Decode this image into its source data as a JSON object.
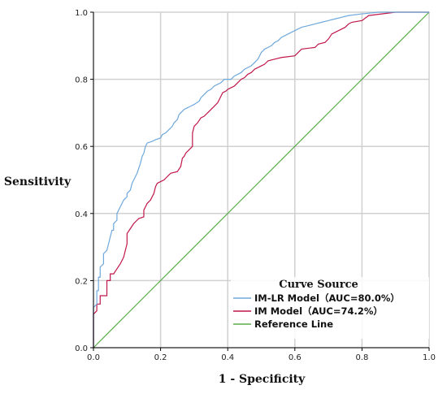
{
  "chart_data": {
    "type": "line",
    "title": "",
    "xlabel": "1 - Specificity",
    "ylabel": "Sensitivity",
    "xlim": [
      0,
      1
    ],
    "ylim": [
      0,
      1
    ],
    "x_ticks": [
      "0.0",
      "0.2",
      "0.4",
      "0.6",
      "0.8",
      "1.0"
    ],
    "y_ticks": [
      "0.0",
      "0.2",
      "0.4",
      "0.6",
      "0.8",
      "1.0"
    ],
    "grid": true,
    "legend": {
      "title": "Curve Source",
      "placement": "bottom-right"
    },
    "series": [
      {
        "name": "IM-LR Model（AUC=80.0%）",
        "color": "#6fa8dc",
        "points": [
          [
            0,
            0
          ],
          [
            0,
            0.12
          ],
          [
            0.01,
            0.13
          ],
          [
            0.01,
            0.17
          ],
          [
            0.015,
            0.17
          ],
          [
            0.015,
            0.21
          ],
          [
            0.02,
            0.21
          ],
          [
            0.02,
            0.24
          ],
          [
            0.03,
            0.25
          ],
          [
            0.03,
            0.28
          ],
          [
            0.04,
            0.29
          ],
          [
            0.045,
            0.31
          ],
          [
            0.05,
            0.33
          ],
          [
            0.055,
            0.35
          ],
          [
            0.06,
            0.35
          ],
          [
            0.06,
            0.37
          ],
          [
            0.07,
            0.38
          ],
          [
            0.07,
            0.4
          ],
          [
            0.08,
            0.42
          ],
          [
            0.09,
            0.44
          ],
          [
            0.1,
            0.45
          ],
          [
            0.1,
            0.46
          ],
          [
            0.11,
            0.47
          ],
          [
            0.115,
            0.49
          ],
          [
            0.125,
            0.51
          ],
          [
            0.13,
            0.52
          ],
          [
            0.14,
            0.55
          ],
          [
            0.145,
            0.57
          ],
          [
            0.15,
            0.58
          ],
          [
            0.155,
            0.6
          ],
          [
            0.16,
            0.61
          ],
          [
            0.175,
            0.615
          ],
          [
            0.185,
            0.62
          ],
          [
            0.2,
            0.625
          ],
          [
            0.205,
            0.635
          ],
          [
            0.215,
            0.64
          ],
          [
            0.225,
            0.65
          ],
          [
            0.235,
            0.66
          ],
          [
            0.24,
            0.67
          ],
          [
            0.25,
            0.68
          ],
          [
            0.255,
            0.695
          ],
          [
            0.27,
            0.71
          ],
          [
            0.28,
            0.715
          ],
          [
            0.29,
            0.72
          ],
          [
            0.3,
            0.725
          ],
          [
            0.315,
            0.735
          ],
          [
            0.32,
            0.745
          ],
          [
            0.33,
            0.755
          ],
          [
            0.34,
            0.765
          ],
          [
            0.35,
            0.77
          ],
          [
            0.36,
            0.78
          ],
          [
            0.37,
            0.785
          ],
          [
            0.38,
            0.79
          ],
          [
            0.39,
            0.8
          ],
          [
            0.41,
            0.8
          ],
          [
            0.42,
            0.81
          ],
          [
            0.43,
            0.815
          ],
          [
            0.44,
            0.82
          ],
          [
            0.45,
            0.83
          ],
          [
            0.46,
            0.835
          ],
          [
            0.47,
            0.84
          ],
          [
            0.48,
            0.85
          ],
          [
            0.49,
            0.86
          ],
          [
            0.5,
            0.88
          ],
          [
            0.51,
            0.89
          ],
          [
            0.52,
            0.895
          ],
          [
            0.53,
            0.9
          ],
          [
            0.54,
            0.91
          ],
          [
            0.55,
            0.915
          ],
          [
            0.56,
            0.925
          ],
          [
            0.57,
            0.93
          ],
          [
            0.58,
            0.935
          ],
          [
            0.6,
            0.945
          ],
          [
            0.62,
            0.955
          ],
          [
            0.64,
            0.96
          ],
          [
            0.66,
            0.965
          ],
          [
            0.68,
            0.97
          ],
          [
            0.7,
            0.975
          ],
          [
            0.72,
            0.98
          ],
          [
            0.74,
            0.985
          ],
          [
            0.76,
            0.99
          ],
          [
            0.8,
            0.995
          ],
          [
            0.85,
            1.0
          ],
          [
            1.0,
            1.0
          ]
        ]
      },
      {
        "name": "IM Model（AUC=74.2%）",
        "color": "#c0174a",
        "points": [
          [
            0,
            0
          ],
          [
            0,
            0.1
          ],
          [
            0.01,
            0.11
          ],
          [
            0.01,
            0.13
          ],
          [
            0.02,
            0.13
          ],
          [
            0.02,
            0.155
          ],
          [
            0.04,
            0.155
          ],
          [
            0.04,
            0.2
          ],
          [
            0.05,
            0.2
          ],
          [
            0.05,
            0.22
          ],
          [
            0.06,
            0.22
          ],
          [
            0.07,
            0.235
          ],
          [
            0.08,
            0.25
          ],
          [
            0.09,
            0.27
          ],
          [
            0.095,
            0.29
          ],
          [
            0.1,
            0.31
          ],
          [
            0.1,
            0.34
          ],
          [
            0.11,
            0.355
          ],
          [
            0.12,
            0.37
          ],
          [
            0.125,
            0.375
          ],
          [
            0.135,
            0.385
          ],
          [
            0.15,
            0.39
          ],
          [
            0.15,
            0.41
          ],
          [
            0.16,
            0.43
          ],
          [
            0.17,
            0.44
          ],
          [
            0.18,
            0.46
          ],
          [
            0.185,
            0.48
          ],
          [
            0.19,
            0.49
          ],
          [
            0.2,
            0.495
          ],
          [
            0.21,
            0.5
          ],
          [
            0.22,
            0.51
          ],
          [
            0.23,
            0.52
          ],
          [
            0.25,
            0.525
          ],
          [
            0.26,
            0.54
          ],
          [
            0.265,
            0.565
          ],
          [
            0.27,
            0.57
          ],
          [
            0.275,
            0.58
          ],
          [
            0.285,
            0.59
          ],
          [
            0.295,
            0.6
          ],
          [
            0.295,
            0.64
          ],
          [
            0.3,
            0.66
          ],
          [
            0.31,
            0.67
          ],
          [
            0.32,
            0.685
          ],
          [
            0.33,
            0.69
          ],
          [
            0.34,
            0.7
          ],
          [
            0.35,
            0.71
          ],
          [
            0.36,
            0.72
          ],
          [
            0.37,
            0.73
          ],
          [
            0.375,
            0.74
          ],
          [
            0.38,
            0.75
          ],
          [
            0.385,
            0.76
          ],
          [
            0.395,
            0.765
          ],
          [
            0.4,
            0.77
          ],
          [
            0.41,
            0.775
          ],
          [
            0.42,
            0.78
          ],
          [
            0.43,
            0.79
          ],
          [
            0.44,
            0.8
          ],
          [
            0.45,
            0.805
          ],
          [
            0.455,
            0.81
          ],
          [
            0.46,
            0.815
          ],
          [
            0.47,
            0.82
          ],
          [
            0.48,
            0.83
          ],
          [
            0.5,
            0.84
          ],
          [
            0.51,
            0.845
          ],
          [
            0.52,
            0.855
          ],
          [
            0.54,
            0.86
          ],
          [
            0.56,
            0.865
          ],
          [
            0.6,
            0.87
          ],
          [
            0.61,
            0.88
          ],
          [
            0.62,
            0.89
          ],
          [
            0.66,
            0.895
          ],
          [
            0.67,
            0.905
          ],
          [
            0.69,
            0.91
          ],
          [
            0.7,
            0.92
          ],
          [
            0.71,
            0.935
          ],
          [
            0.73,
            0.945
          ],
          [
            0.75,
            0.955
          ],
          [
            0.76,
            0.965
          ],
          [
            0.77,
            0.97
          ],
          [
            0.8,
            0.975
          ],
          [
            0.82,
            0.99
          ],
          [
            0.9,
            1.0
          ],
          [
            1.0,
            1.0
          ]
        ]
      },
      {
        "name": "Reference Line",
        "color": "#5cad4a",
        "points": [
          [
            0,
            0
          ],
          [
            1,
            1
          ]
        ]
      }
    ]
  }
}
